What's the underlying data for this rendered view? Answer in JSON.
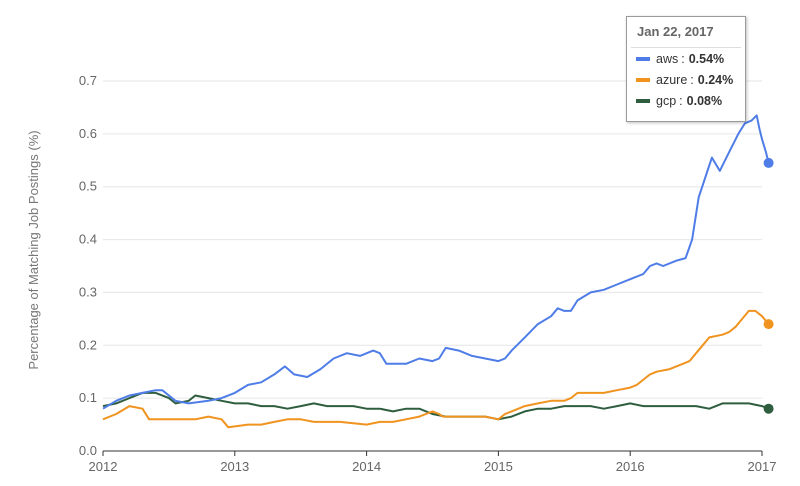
{
  "chart_data": {
    "type": "line",
    "ylabel": "Percentage of Matching Job Postings (%)",
    "xlim": [
      2012,
      2017
    ],
    "ylim": [
      0,
      0.7
    ],
    "x_ticks": [
      "2012",
      "2013",
      "2014",
      "2015",
      "2016",
      "2017"
    ],
    "y_ticks": [
      "0.0",
      "0.1",
      "0.2",
      "0.3",
      "0.4",
      "0.5",
      "0.6",
      "0.7"
    ],
    "grid": true,
    "series": [
      {
        "name": "aws",
        "color": "#4f7de8",
        "points": [
          [
            2012.0,
            0.08
          ],
          [
            2012.1,
            0.095
          ],
          [
            2012.2,
            0.105
          ],
          [
            2012.3,
            0.11
          ],
          [
            2012.4,
            0.115
          ],
          [
            2012.45,
            0.115
          ],
          [
            2012.55,
            0.095
          ],
          [
            2012.65,
            0.09
          ],
          [
            2012.8,
            0.095
          ],
          [
            2012.9,
            0.1
          ],
          [
            2013.0,
            0.11
          ],
          [
            2013.1,
            0.125
          ],
          [
            2013.2,
            0.13
          ],
          [
            2013.3,
            0.145
          ],
          [
            2013.38,
            0.16
          ],
          [
            2013.45,
            0.145
          ],
          [
            2013.55,
            0.14
          ],
          [
            2013.65,
            0.155
          ],
          [
            2013.75,
            0.175
          ],
          [
            2013.85,
            0.185
          ],
          [
            2013.95,
            0.18
          ],
          [
            2014.05,
            0.19
          ],
          [
            2014.1,
            0.185
          ],
          [
            2014.15,
            0.165
          ],
          [
            2014.3,
            0.165
          ],
          [
            2014.4,
            0.175
          ],
          [
            2014.5,
            0.17
          ],
          [
            2014.55,
            0.175
          ],
          [
            2014.6,
            0.195
          ],
          [
            2014.7,
            0.19
          ],
          [
            2014.8,
            0.18
          ],
          [
            2014.9,
            0.175
          ],
          [
            2015.0,
            0.17
          ],
          [
            2015.05,
            0.175
          ],
          [
            2015.1,
            0.19
          ],
          [
            2015.2,
            0.215
          ],
          [
            2015.3,
            0.24
          ],
          [
            2015.4,
            0.255
          ],
          [
            2015.45,
            0.27
          ],
          [
            2015.5,
            0.265
          ],
          [
            2015.55,
            0.265
          ],
          [
            2015.6,
            0.285
          ],
          [
            2015.7,
            0.3
          ],
          [
            2015.8,
            0.305
          ],
          [
            2015.9,
            0.315
          ],
          [
            2016.0,
            0.325
          ],
          [
            2016.1,
            0.335
          ],
          [
            2016.15,
            0.35
          ],
          [
            2016.2,
            0.355
          ],
          [
            2016.25,
            0.35
          ],
          [
            2016.35,
            0.36
          ],
          [
            2016.42,
            0.365
          ],
          [
            2016.47,
            0.4
          ],
          [
            2016.52,
            0.48
          ],
          [
            2016.58,
            0.525
          ],
          [
            2016.62,
            0.555
          ],
          [
            2016.68,
            0.53
          ],
          [
            2016.73,
            0.555
          ],
          [
            2016.78,
            0.58
          ],
          [
            2016.82,
            0.6
          ],
          [
            2016.87,
            0.62
          ],
          [
            2016.92,
            0.625
          ],
          [
            2016.96,
            0.635
          ],
          [
            2016.98,
            0.61
          ],
          [
            2017.0,
            0.59
          ],
          [
            2017.03,
            0.565
          ],
          [
            2017.05,
            0.545
          ]
        ]
      },
      {
        "name": "azure",
        "color": "#f0931f",
        "points": [
          [
            2012.0,
            0.06
          ],
          [
            2012.1,
            0.07
          ],
          [
            2012.2,
            0.085
          ],
          [
            2012.3,
            0.08
          ],
          [
            2012.35,
            0.06
          ],
          [
            2012.5,
            0.06
          ],
          [
            2012.6,
            0.06
          ],
          [
            2012.7,
            0.06
          ],
          [
            2012.8,
            0.065
          ],
          [
            2012.9,
            0.06
          ],
          [
            2012.95,
            0.045
          ],
          [
            2013.1,
            0.05
          ],
          [
            2013.2,
            0.05
          ],
          [
            2013.3,
            0.055
          ],
          [
            2013.4,
            0.06
          ],
          [
            2013.5,
            0.06
          ],
          [
            2013.6,
            0.055
          ],
          [
            2013.8,
            0.055
          ],
          [
            2014.0,
            0.05
          ],
          [
            2014.1,
            0.055
          ],
          [
            2014.2,
            0.055
          ],
          [
            2014.3,
            0.06
          ],
          [
            2014.4,
            0.065
          ],
          [
            2014.45,
            0.07
          ],
          [
            2014.5,
            0.075
          ],
          [
            2014.55,
            0.07
          ],
          [
            2014.58,
            0.065
          ],
          [
            2014.7,
            0.065
          ],
          [
            2014.9,
            0.065
          ],
          [
            2015.0,
            0.06
          ],
          [
            2015.05,
            0.07
          ],
          [
            2015.1,
            0.075
          ],
          [
            2015.2,
            0.085
          ],
          [
            2015.3,
            0.09
          ],
          [
            2015.4,
            0.095
          ],
          [
            2015.5,
            0.095
          ],
          [
            2015.55,
            0.1
          ],
          [
            2015.6,
            0.11
          ],
          [
            2015.7,
            0.11
          ],
          [
            2015.8,
            0.11
          ],
          [
            2015.9,
            0.115
          ],
          [
            2016.0,
            0.12
          ],
          [
            2016.05,
            0.125
          ],
          [
            2016.1,
            0.135
          ],
          [
            2016.15,
            0.145
          ],
          [
            2016.2,
            0.15
          ],
          [
            2016.3,
            0.155
          ],
          [
            2016.4,
            0.165
          ],
          [
            2016.45,
            0.17
          ],
          [
            2016.5,
            0.185
          ],
          [
            2016.55,
            0.2
          ],
          [
            2016.6,
            0.215
          ],
          [
            2016.7,
            0.22
          ],
          [
            2016.75,
            0.225
          ],
          [
            2016.8,
            0.235
          ],
          [
            2016.85,
            0.25
          ],
          [
            2016.9,
            0.265
          ],
          [
            2016.95,
            0.265
          ],
          [
            2017.0,
            0.255
          ],
          [
            2017.05,
            0.24
          ]
        ]
      },
      {
        "name": "gcp",
        "color": "#2f5e3f",
        "points": [
          [
            2012.0,
            0.085
          ],
          [
            2012.1,
            0.09
          ],
          [
            2012.2,
            0.1
          ],
          [
            2012.3,
            0.11
          ],
          [
            2012.4,
            0.11
          ],
          [
            2012.5,
            0.1
          ],
          [
            2012.55,
            0.09
          ],
          [
            2012.65,
            0.095
          ],
          [
            2012.7,
            0.105
          ],
          [
            2012.8,
            0.1
          ],
          [
            2012.9,
            0.095
          ],
          [
            2013.0,
            0.09
          ],
          [
            2013.1,
            0.09
          ],
          [
            2013.2,
            0.085
          ],
          [
            2013.3,
            0.085
          ],
          [
            2013.4,
            0.08
          ],
          [
            2013.5,
            0.085
          ],
          [
            2013.6,
            0.09
          ],
          [
            2013.7,
            0.085
          ],
          [
            2013.8,
            0.085
          ],
          [
            2013.9,
            0.085
          ],
          [
            2014.0,
            0.08
          ],
          [
            2014.1,
            0.08
          ],
          [
            2014.2,
            0.075
          ],
          [
            2014.3,
            0.08
          ],
          [
            2014.4,
            0.08
          ],
          [
            2014.5,
            0.07
          ],
          [
            2014.6,
            0.065
          ],
          [
            2014.7,
            0.065
          ],
          [
            2014.8,
            0.065
          ],
          [
            2014.9,
            0.065
          ],
          [
            2015.0,
            0.06
          ],
          [
            2015.1,
            0.065
          ],
          [
            2015.2,
            0.075
          ],
          [
            2015.3,
            0.08
          ],
          [
            2015.4,
            0.08
          ],
          [
            2015.5,
            0.085
          ],
          [
            2015.6,
            0.085
          ],
          [
            2015.7,
            0.085
          ],
          [
            2015.8,
            0.08
          ],
          [
            2015.9,
            0.085
          ],
          [
            2016.0,
            0.09
          ],
          [
            2016.1,
            0.085
          ],
          [
            2016.2,
            0.085
          ],
          [
            2016.3,
            0.085
          ],
          [
            2016.4,
            0.085
          ],
          [
            2016.5,
            0.085
          ],
          [
            2016.6,
            0.08
          ],
          [
            2016.7,
            0.09
          ],
          [
            2016.8,
            0.09
          ],
          [
            2016.9,
            0.09
          ],
          [
            2017.0,
            0.085
          ],
          [
            2017.05,
            0.08
          ]
        ]
      }
    ]
  },
  "tooltip": {
    "date": "Jan 22, 2017",
    "rows": [
      {
        "name": "aws",
        "colon": ":",
        "value": "0.54%",
        "color": "#4f7de8"
      },
      {
        "name": "azure",
        "colon": ":",
        "value": "0.24%",
        "color": "#f0931f"
      },
      {
        "name": "gcp",
        "colon": ":",
        "value": "0.08%",
        "color": "#2f5e3f"
      }
    ]
  }
}
